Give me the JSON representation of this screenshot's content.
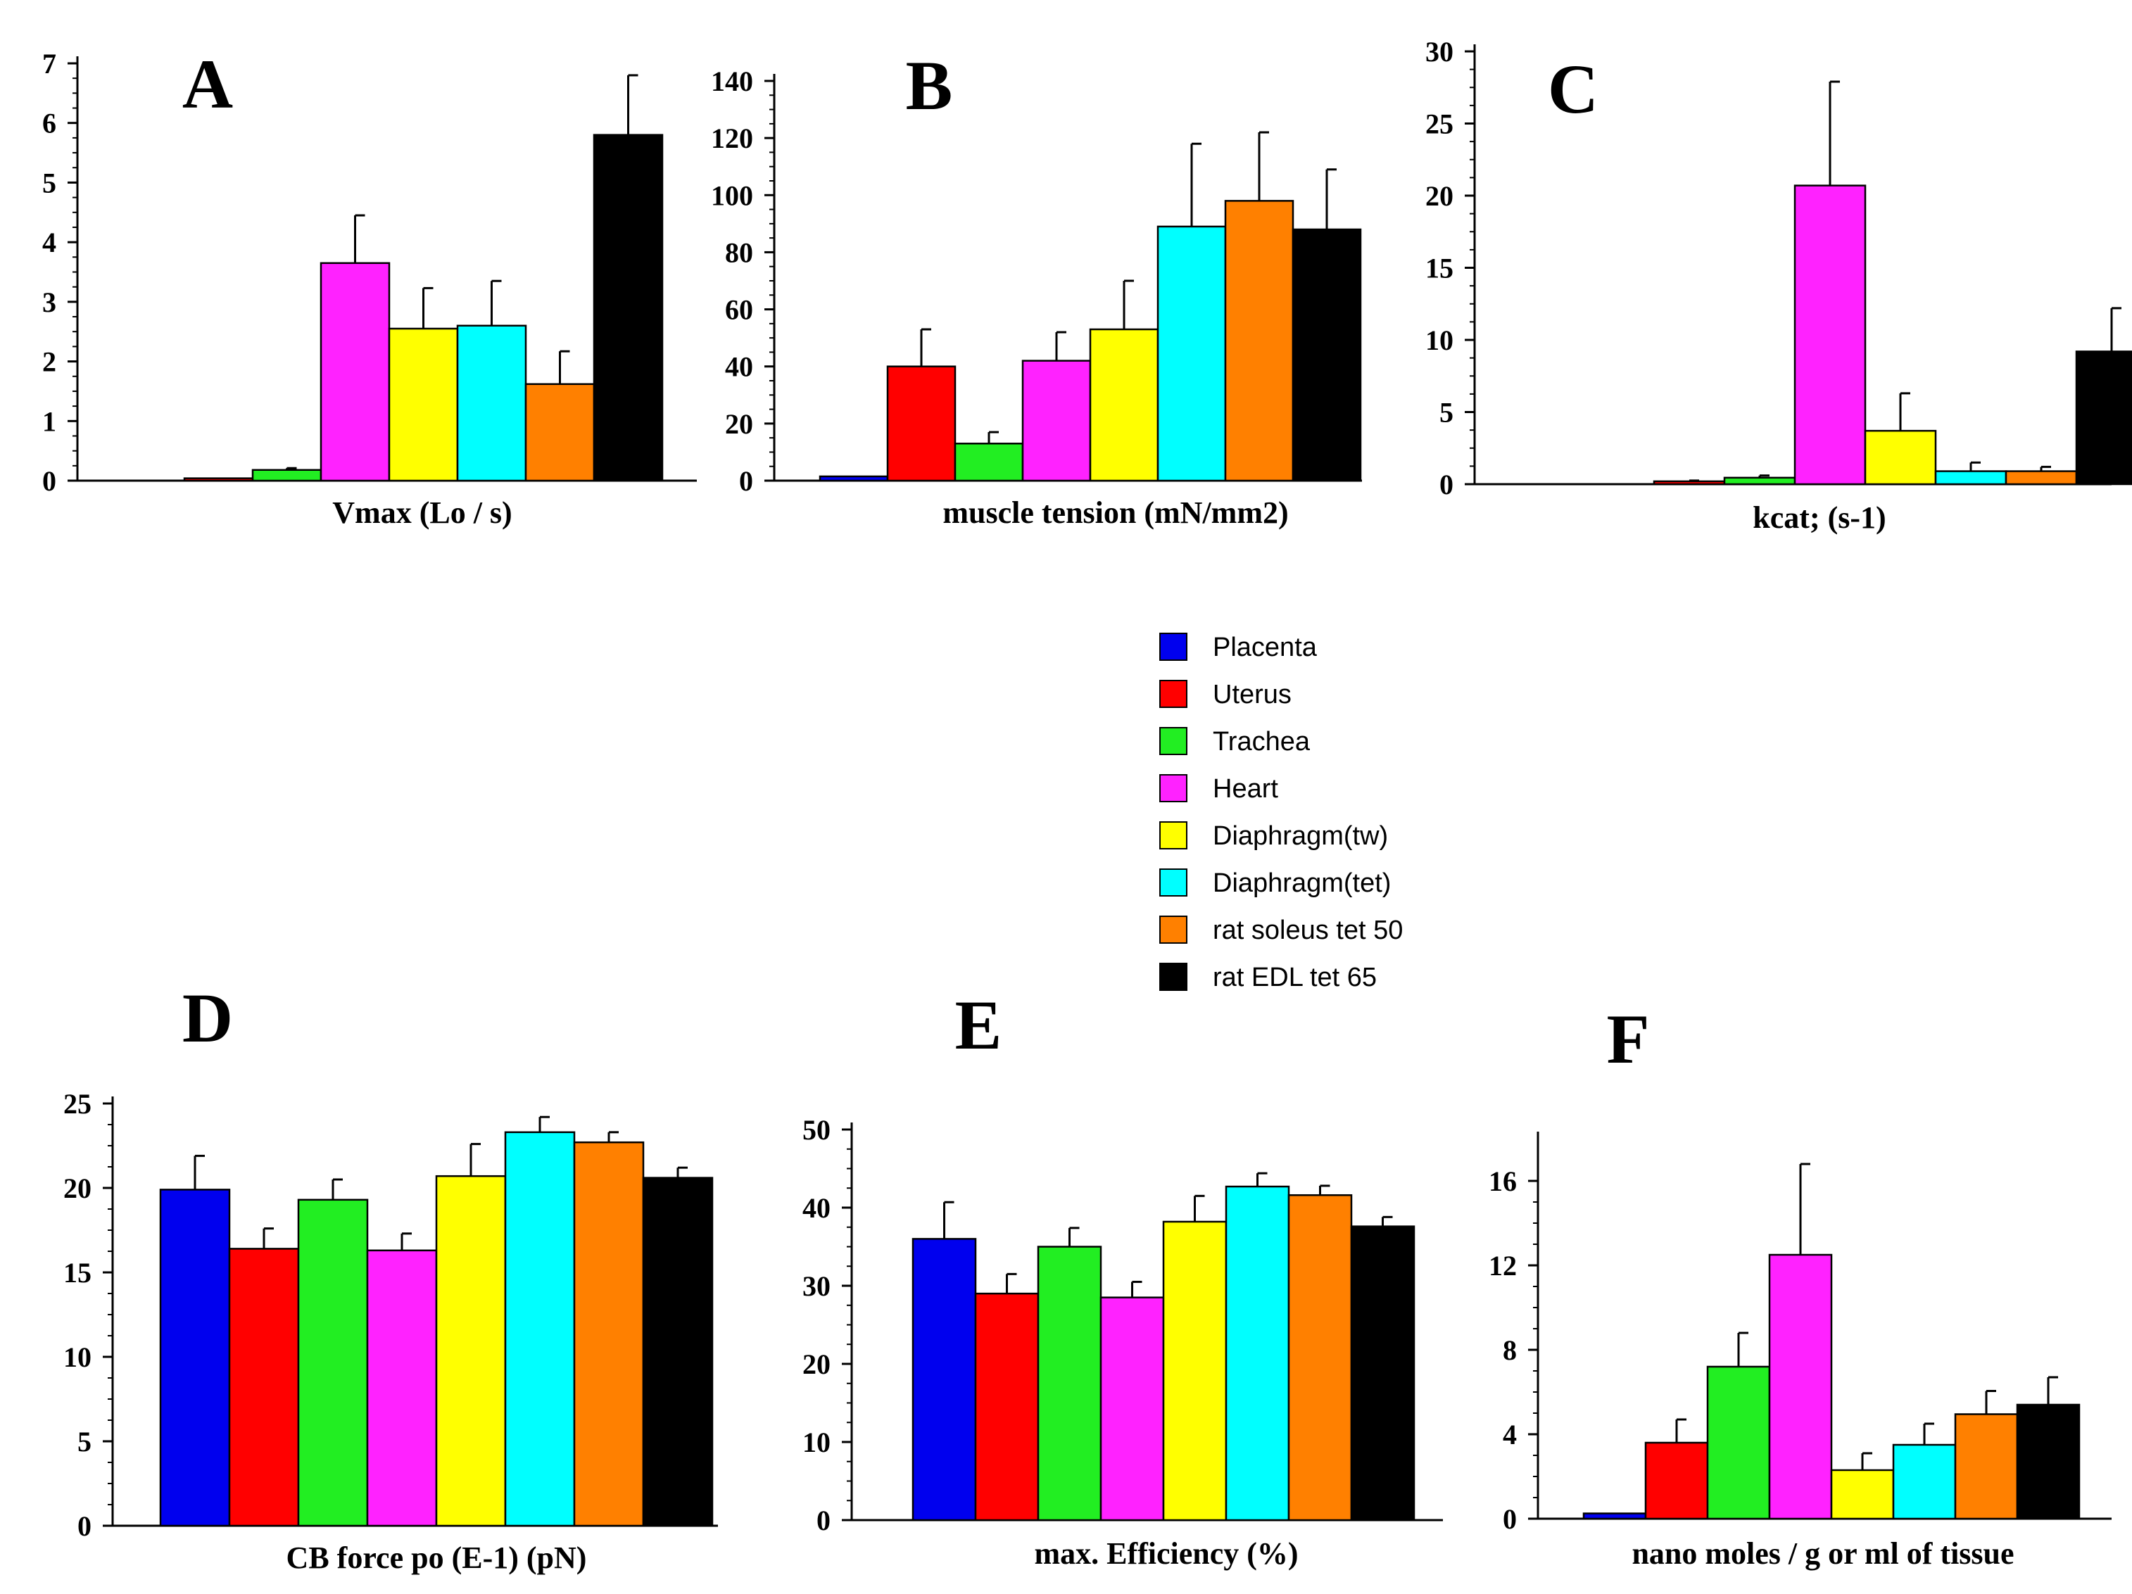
{
  "colors": {
    "Placenta": "#0000ee",
    "Uterus": "#ff0000",
    "Trachea": "#22ee22",
    "Heart": "#ff22ff",
    "Diaphragm(tw)": "#ffff00",
    "Diaphragm(tet)": "#00ffff",
    "rat soleus tet 50": "#ff8000",
    "rat EDL tet 65": "#000000"
  },
  "legend": {
    "items": [
      "Placenta",
      "Uterus",
      "Trachea",
      "Heart",
      "Diaphragm(tw)",
      "Diaphragm(tet)",
      "rat soleus tet 50",
      "rat EDL tet 65"
    ]
  },
  "chart_data": [
    {
      "panel": "A",
      "type": "bar",
      "xlabel": "Vmax (Lo / s)",
      "ylabel": "",
      "ylim": [
        0,
        7
      ],
      "yticks": [
        0,
        1,
        2,
        3,
        4,
        5,
        6,
        7
      ],
      "categories": [
        "Placenta",
        "Uterus",
        "Trachea",
        "Heart",
        "Diaphragm(tw)",
        "Diaphragm(tet)",
        "rat soleus tet 50",
        "rat EDL tet 65"
      ],
      "values": [
        null,
        0.04,
        0.18,
        3.65,
        2.55,
        2.6,
        1.62,
        5.8
      ],
      "errors": [
        null,
        0.0,
        0.03,
        0.8,
        0.68,
        0.75,
        0.55,
        1.0
      ]
    },
    {
      "panel": "B",
      "type": "bar",
      "xlabel": "muscle tension (mN/mm2)",
      "ylabel": "",
      "ylim": [
        0,
        140
      ],
      "yticks": [
        0,
        20,
        40,
        60,
        80,
        100,
        120,
        140
      ],
      "categories": [
        "Placenta",
        "Uterus",
        "Trachea",
        "Heart",
        "Diaphragm(tw)",
        "Diaphragm(tet)",
        "rat soleus tet 50",
        "rat EDL tet 65"
      ],
      "values": [
        1.5,
        40,
        13,
        42,
        53,
        89,
        98,
        88
      ],
      "errors": [
        0,
        13,
        4,
        10,
        17,
        29,
        24,
        21
      ]
    },
    {
      "panel": "C",
      "type": "bar",
      "xlabel": "kcat; (s-1)",
      "ylabel": "",
      "ylim": [
        0,
        30
      ],
      "yticks": [
        0,
        5,
        10,
        15,
        20,
        25,
        30
      ],
      "categories": [
        "Placenta",
        "Uterus",
        "Trachea",
        "Heart",
        "Diaphragm(tw)",
        "Diaphragm(tet)",
        "rat soleus tet 50",
        "rat EDL tet 65"
      ],
      "values": [
        null,
        0.2,
        0.45,
        20.7,
        3.7,
        0.9,
        0.9,
        9.2
      ],
      "errors": [
        null,
        0.05,
        0.15,
        7.2,
        2.6,
        0.6,
        0.3,
        3.0
      ]
    },
    {
      "panel": "D",
      "type": "bar",
      "xlabel": "CB force po (E-1) (pN)",
      "ylabel": "",
      "ylim": [
        0,
        25
      ],
      "yticks": [
        0,
        5,
        10,
        15,
        20,
        25
      ],
      "categories": [
        "Placenta",
        "Uterus",
        "Trachea",
        "Heart",
        "Diaphragm(tw)",
        "Diaphragm(tet)",
        "rat soleus tet 50",
        "rat EDL tet 65"
      ],
      "values": [
        19.9,
        16.4,
        19.3,
        16.3,
        20.7,
        23.3,
        22.7,
        20.6
      ],
      "errors": [
        2.0,
        1.2,
        1.2,
        1.0,
        1.9,
        0.9,
        0.6,
        0.6
      ]
    },
    {
      "panel": "E",
      "type": "bar",
      "xlabel": "max. Efficiency (%)",
      "ylabel": "",
      "ylim": [
        0,
        50
      ],
      "yticks": [
        0,
        10,
        20,
        30,
        40,
        50
      ],
      "categories": [
        "Placenta",
        "Uterus",
        "Trachea",
        "Heart",
        "Diaphragm(tw)",
        "Diaphragm(tet)",
        "rat soleus tet 50",
        "rat EDL tet 65"
      ],
      "values": [
        36,
        29,
        35,
        28.5,
        38.2,
        42.7,
        41.6,
        37.6
      ],
      "errors": [
        4.7,
        2.5,
        2.4,
        2.0,
        3.3,
        1.7,
        1.2,
        1.2
      ]
    },
    {
      "panel": "F",
      "type": "bar",
      "xlabel": "nano moles / g or ml of tissue",
      "ylabel": "",
      "ylim": [
        0,
        18
      ],
      "yticks": [
        0,
        4,
        8,
        12,
        16
      ],
      "categories": [
        "Placenta",
        "Uterus",
        "Trachea",
        "Heart",
        "Diaphragm(tw)",
        "Diaphragm(tet)",
        "rat soleus tet 50",
        "rat EDL tet 65"
      ],
      "values": [
        0.25,
        3.6,
        7.2,
        12.5,
        2.3,
        3.5,
        4.95,
        5.4
      ],
      "errors": [
        0,
        1.1,
        1.6,
        4.3,
        0.8,
        1.0,
        1.1,
        1.3
      ]
    }
  ]
}
